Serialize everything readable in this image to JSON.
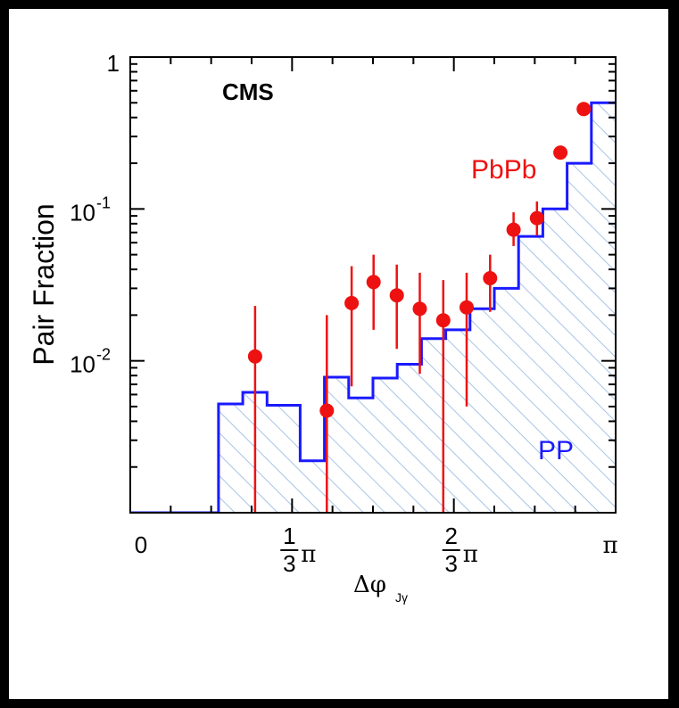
{
  "chart_data": {
    "type": "histogram",
    "title": "",
    "watermark": "CMS",
    "xlabel": "Δφ",
    "xlabel_sub": "Jγ",
    "ylabel": "Pair Fraction",
    "xlim": [
      0,
      3.14159
    ],
    "ylim": [
      0.001,
      1
    ],
    "yscale": "log",
    "x_ticks": [
      {
        "value": 0,
        "label": "0"
      },
      {
        "value": 1.0472,
        "num": "1",
        "den": "3",
        "sym": "π"
      },
      {
        "value": 2.0944,
        "num": "2",
        "den": "3",
        "sym": "π"
      },
      {
        "value": 3.14159,
        "label": "π"
      }
    ],
    "y_ticks": [
      {
        "value": 1,
        "mant": "1",
        "exp": ""
      },
      {
        "value": 0.1,
        "mant": "10",
        "exp": "-1"
      },
      {
        "value": 0.01,
        "mant": "10",
        "exp": "-2"
      }
    ],
    "bin_edges": [
      0.0,
      0.5712,
      0.7283,
      0.8854,
      1.0996,
      1.2566,
      1.4137,
      1.5708,
      1.7279,
      1.885,
      2.042,
      2.1991,
      2.3562,
      2.5133,
      2.6704,
      2.8274,
      2.9845,
      3.1416
    ],
    "series": [
      {
        "name": "pp",
        "style": "hatched-histogram",
        "color": "#1a1aff",
        "hatch_color": "#a8c4e6",
        "values": [
          0.001,
          0.0052,
          0.0062,
          0.0051,
          0.0022,
          0.0078,
          0.0057,
          0.0077,
          0.0095,
          0.014,
          0.016,
          0.022,
          0.03,
          0.066,
          0.1,
          0.2,
          0.5
        ]
      },
      {
        "name": "PbPb",
        "style": "points-with-errors",
        "color": "#ee1111",
        "points": [
          {
            "x": 0.808,
            "y": 0.0107,
            "ylo": 0.001,
            "yhi": 0.023
          },
          {
            "x": 1.272,
            "y": 0.0047,
            "ylo": 0.001,
            "yhi": 0.02
          },
          {
            "x": 1.433,
            "y": 0.024,
            "ylo": 0.0068,
            "yhi": 0.042
          },
          {
            "x": 1.575,
            "y": 0.033,
            "ylo": 0.016,
            "yhi": 0.05
          },
          {
            "x": 1.725,
            "y": 0.027,
            "ylo": 0.012,
            "yhi": 0.043
          },
          {
            "x": 1.874,
            "y": 0.022,
            "ylo": 0.0082,
            "yhi": 0.038
          },
          {
            "x": 2.026,
            "y": 0.0185,
            "ylo": 0.001,
            "yhi": 0.034
          },
          {
            "x": 2.177,
            "y": 0.0225,
            "ylo": 0.005,
            "yhi": 0.038
          },
          {
            "x": 2.329,
            "y": 0.035,
            "ylo": 0.021,
            "yhi": 0.05
          },
          {
            "x": 2.481,
            "y": 0.073,
            "ylo": 0.057,
            "yhi": 0.095
          },
          {
            "x": 2.632,
            "y": 0.087,
            "ylo": 0.067,
            "yhi": 0.112
          },
          {
            "x": 2.784,
            "y": 0.235,
            "ylo": 0.215,
            "yhi": 0.26
          },
          {
            "x": 2.935,
            "y": 0.455,
            "ylo": 0.43,
            "yhi": 0.48
          }
        ]
      }
    ],
    "annotations": [
      {
        "id": "pbpb-label",
        "text": "PbPb",
        "color": "#ee1111"
      },
      {
        "id": "pp-label",
        "text": "PP",
        "color": "#1a1aff"
      }
    ]
  }
}
